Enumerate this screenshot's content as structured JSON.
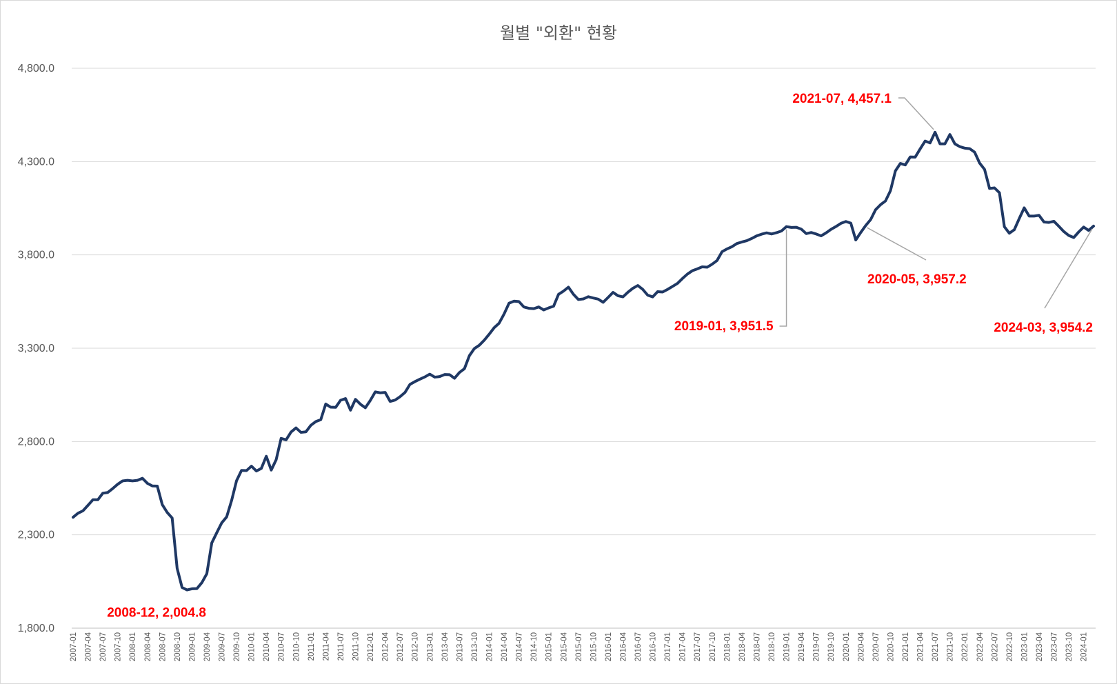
{
  "chart_data": {
    "type": "line",
    "title": "월별 \"외환\" 현황",
    "xlabel": "",
    "ylabel": "",
    "ylim": [
      1800,
      4800
    ],
    "yticks": [
      "1,800.0",
      "2,300.0",
      "2,800.0",
      "3,300.0",
      "3,800.0",
      "4,300.0",
      "4,800.0"
    ],
    "ytick_values": [
      1800,
      2300,
      2800,
      3300,
      3800,
      4300,
      4800
    ],
    "grid": true,
    "legend": "none",
    "line_color": "#1f3864",
    "annotation_color": "#ff0000",
    "x": [
      "2007-01",
      "2007-02",
      "2007-03",
      "2007-04",
      "2007-05",
      "2007-06",
      "2007-07",
      "2007-08",
      "2007-09",
      "2007-10",
      "2007-11",
      "2007-12",
      "2008-01",
      "2008-02",
      "2008-03",
      "2008-04",
      "2008-05",
      "2008-06",
      "2008-07",
      "2008-08",
      "2008-09",
      "2008-10",
      "2008-11",
      "2008-12",
      "2009-01",
      "2009-02",
      "2009-03",
      "2009-04",
      "2009-05",
      "2009-06",
      "2009-07",
      "2009-08",
      "2009-09",
      "2009-10",
      "2009-11",
      "2009-12",
      "2010-01",
      "2010-02",
      "2010-03",
      "2010-04",
      "2010-05",
      "2010-06",
      "2010-07",
      "2010-08",
      "2010-09",
      "2010-10",
      "2010-11",
      "2010-12",
      "2011-01",
      "2011-02",
      "2011-03",
      "2011-04",
      "2011-05",
      "2011-06",
      "2011-07",
      "2011-08",
      "2011-09",
      "2011-10",
      "2011-11",
      "2011-12",
      "2012-01",
      "2012-02",
      "2012-03",
      "2012-04",
      "2012-05",
      "2012-06",
      "2012-07",
      "2012-08",
      "2012-09",
      "2012-10",
      "2012-11",
      "2012-12",
      "2013-01",
      "2013-02",
      "2013-03",
      "2013-04",
      "2013-05",
      "2013-06",
      "2013-07",
      "2013-08",
      "2013-09",
      "2013-10",
      "2013-11",
      "2013-12",
      "2014-01",
      "2014-02",
      "2014-03",
      "2014-04",
      "2014-05",
      "2014-06",
      "2014-07",
      "2014-08",
      "2014-09",
      "2014-10",
      "2014-11",
      "2014-12",
      "2015-01",
      "2015-02",
      "2015-03",
      "2015-04",
      "2015-05",
      "2015-06",
      "2015-07",
      "2015-08",
      "2015-09",
      "2015-10",
      "2015-11",
      "2015-12",
      "2016-01",
      "2016-02",
      "2016-03",
      "2016-04",
      "2016-05",
      "2016-06",
      "2016-07",
      "2016-08",
      "2016-09",
      "2016-10",
      "2016-11",
      "2016-12",
      "2017-01",
      "2017-02",
      "2017-03",
      "2017-04",
      "2017-05",
      "2017-06",
      "2017-07",
      "2017-08",
      "2017-09",
      "2017-10",
      "2017-11",
      "2017-12",
      "2018-01",
      "2018-02",
      "2018-03",
      "2018-04",
      "2018-05",
      "2018-06",
      "2018-07",
      "2018-08",
      "2018-09",
      "2018-10",
      "2018-11",
      "2018-12",
      "2019-01",
      "2019-02",
      "2019-03",
      "2019-04",
      "2019-05",
      "2019-06",
      "2019-07",
      "2019-08",
      "2019-09",
      "2019-10",
      "2019-11",
      "2019-12",
      "2020-01",
      "2020-02",
      "2020-03",
      "2020-04",
      "2020-05",
      "2020-06",
      "2020-07",
      "2020-08",
      "2020-09",
      "2020-10",
      "2020-11",
      "2020-12",
      "2021-01",
      "2021-02",
      "2021-03",
      "2021-04",
      "2021-05",
      "2021-06",
      "2021-07",
      "2021-08",
      "2021-09",
      "2021-10",
      "2021-11",
      "2021-12",
      "2022-01",
      "2022-02",
      "2022-03",
      "2022-04",
      "2022-05",
      "2022-06",
      "2022-07",
      "2022-08",
      "2022-09",
      "2022-10",
      "2022-11",
      "2022-12",
      "2023-01",
      "2023-02",
      "2023-03",
      "2023-04",
      "2023-05",
      "2023-06",
      "2023-07",
      "2023-08",
      "2023-09",
      "2023-10",
      "2023-11",
      "2023-12",
      "2024-01",
      "2024-02",
      "2024-03"
    ],
    "x_tick_labels": [
      "2007-01",
      "2007-04",
      "2007-07",
      "2007-10",
      "2008-01",
      "2008-04",
      "2008-07",
      "2008-10",
      "2009-01",
      "2009-04",
      "2009-07",
      "2009-10",
      "2010-01",
      "2010-04",
      "2010-07",
      "2010-10",
      "2011-01",
      "2011-04",
      "2011-07",
      "2011-10",
      "2012-01",
      "2012-04",
      "2012-07",
      "2012-10",
      "2013-01",
      "2013-04",
      "2013-07",
      "2013-10",
      "2014-01",
      "2014-04",
      "2014-07",
      "2014-10",
      "2015-01",
      "2015-04",
      "2015-07",
      "2015-10",
      "2016-01",
      "2016-04",
      "2016-07",
      "2016-10",
      "2017-01",
      "2017-04",
      "2017-07",
      "2017-10",
      "2018-01",
      "2018-04",
      "2018-07",
      "2018-10",
      "2019-01",
      "2019-04",
      "2019-07",
      "2019-10",
      "2020-01",
      "2020-04",
      "2020-07",
      "2020-10",
      "2021-01",
      "2021-04",
      "2021-07",
      "2021-10",
      "2022-01",
      "2022-04",
      "2022-07",
      "2022-10",
      "2023-01",
      "2023-04",
      "2023-07",
      "2023-10",
      "2024-01"
    ],
    "series": [
      {
        "values": [
          2394,
          2416,
          2429,
          2458,
          2488,
          2488,
          2523,
          2527,
          2548,
          2571,
          2589,
          2592,
          2589,
          2592,
          2603,
          2576,
          2562,
          2561,
          2462,
          2420,
          2390,
          2121,
          2018,
          2004.8,
          2011,
          2012,
          2044,
          2092,
          2257,
          2311,
          2364,
          2396,
          2484,
          2590,
          2645,
          2644,
          2668,
          2642,
          2656,
          2721,
          2647,
          2703,
          2817,
          2809,
          2851,
          2873,
          2849,
          2852,
          2887,
          2907,
          2917,
          3001,
          2984,
          2983,
          3021,
          3030,
          2968,
          3026,
          3000,
          2981,
          3020,
          3066,
          3061,
          3063,
          3015,
          3022,
          3040,
          3063,
          3106,
          3121,
          3134,
          3146,
          3161,
          3145,
          3148,
          3159,
          3158,
          3139,
          3170,
          3190,
          3260,
          3298,
          3316,
          3343,
          3375,
          3410,
          3434,
          3483,
          3541,
          3552,
          3550,
          3521,
          3514,
          3512,
          3521,
          3505,
          3516,
          3525,
          3589,
          3606,
          3627,
          3589,
          3561,
          3564,
          3576,
          3569,
          3563,
          3546,
          3572,
          3599,
          3581,
          3575,
          3600,
          3621,
          3636,
          3615,
          3584,
          3575,
          3603,
          3601,
          3615,
          3631,
          3647,
          3673,
          3697,
          3715,
          3725,
          3736,
          3734,
          3750,
          3770,
          3817,
          3832,
          3844,
          3861,
          3869,
          3876,
          3888,
          3902,
          3911,
          3918,
          3912,
          3919,
          3928,
          3951.5,
          3947,
          3948,
          3938,
          3914,
          3920,
          3912,
          3902,
          3918,
          3937,
          3952,
          3969,
          3979,
          3970,
          3880,
          3920,
          3957.2,
          3989,
          4042,
          4069,
          4089,
          4144,
          4250,
          4290,
          4282,
          4325,
          4324,
          4368,
          4410,
          4400,
          4457.1,
          4395,
          4395,
          4445,
          4395,
          4380,
          4372,
          4369,
          4350,
          4292,
          4258,
          4156,
          4159,
          4133,
          3951,
          3916,
          3935,
          3995,
          4052,
          4008,
          4008,
          4012,
          3976,
          3974,
          3980,
          3953,
          3925,
          3904,
          3893,
          3923,
          3949,
          3931,
          3954.2
        ]
      }
    ],
    "annotations": [
      {
        "label": "2008-12, 2,004.8",
        "x": "2008-12",
        "value": 2004.8
      },
      {
        "label": "2019-01, 3,951.5",
        "x": "2019-01",
        "value": 3951.5
      },
      {
        "label": "2020-05, 3,957.2",
        "x": "2020-05",
        "value": 3957.2
      },
      {
        "label": "2021-07, 4,457.1",
        "x": "2021-07",
        "value": 4457.1
      },
      {
        "label": "2024-03, 3,954.2",
        "x": "2024-03",
        "value": 3954.2
      }
    ]
  }
}
